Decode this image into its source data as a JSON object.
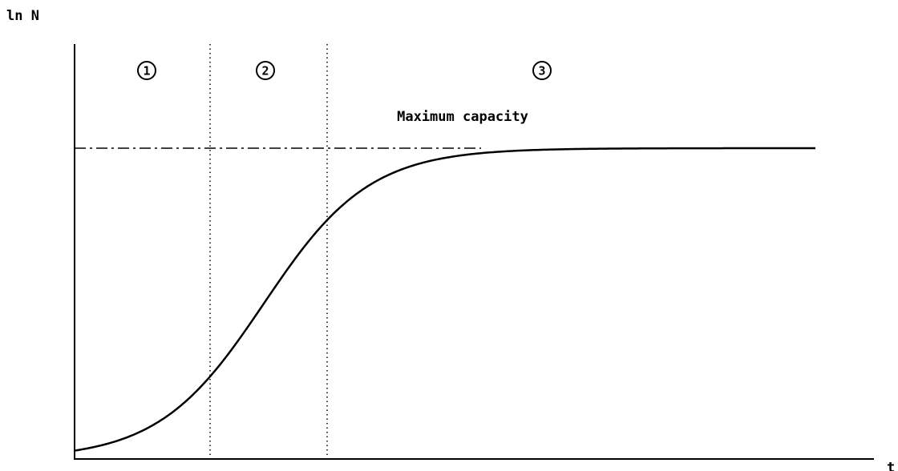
{
  "axes": {
    "y_label": "ln N",
    "x_label": "t"
  },
  "phases": [
    "1",
    "2",
    "3"
  ],
  "annotation": "Maximum capacity"
}
